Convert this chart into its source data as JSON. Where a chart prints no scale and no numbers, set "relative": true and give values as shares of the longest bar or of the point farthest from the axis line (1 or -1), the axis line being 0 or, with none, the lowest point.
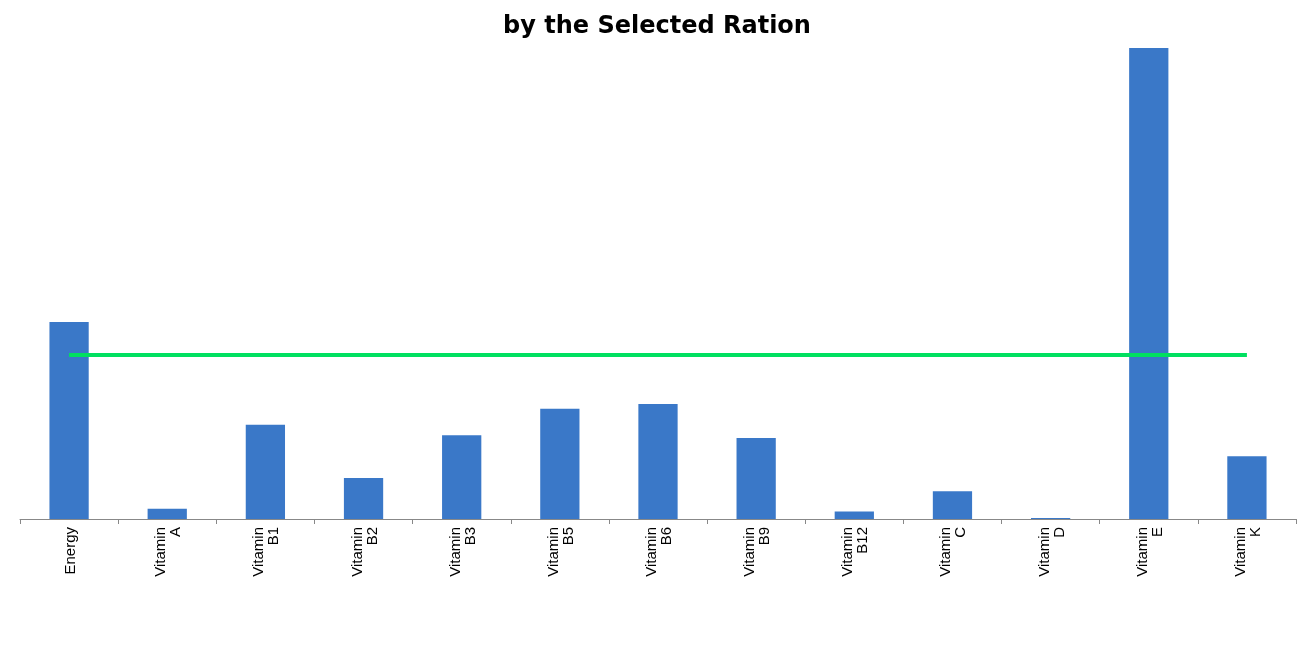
{
  "chart_data": {
    "type": "bar",
    "title": "by the Selected Ration",
    "relative": true,
    "categories": [
      "Energy",
      "Vitamin A",
      "Vitamin B1",
      "Vitamin B2",
      "Vitamin B3",
      "Vitamin B5",
      "Vitamin B6",
      "Vitamin B9",
      "Vitamin B12",
      "Vitamin C",
      "Vitamin D",
      "Vitamin E",
      "Vitamin K"
    ],
    "values": [
      0.418,
      0.022,
      0.2,
      0.087,
      0.178,
      0.234,
      0.244,
      0.172,
      0.016,
      0.059,
      0.002,
      1,
      0.133
    ],
    "color": "#3a78c8",
    "ref_lines": [
      {
        "axis": "y",
        "value": 0.349,
        "color": "#00e060"
      }
    ],
    "grid": false
  }
}
